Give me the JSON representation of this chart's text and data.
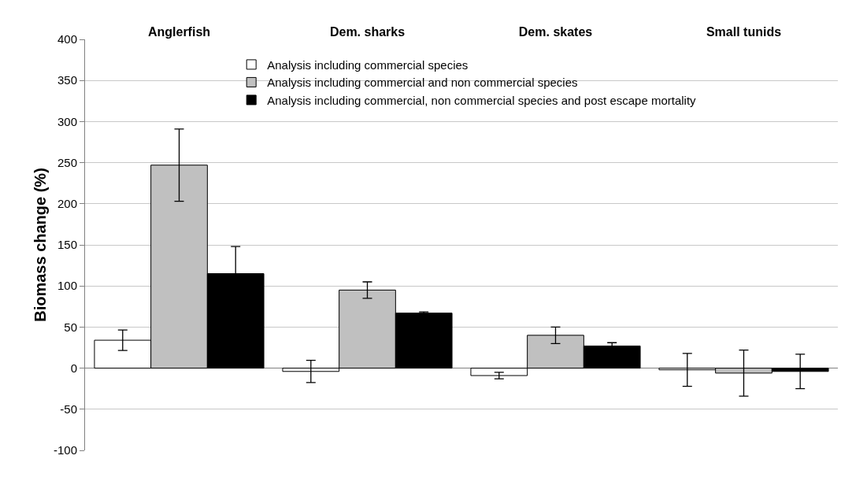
{
  "chart_data": {
    "type": "bar",
    "ylabel": "Biomass change (%)",
    "categories": [
      "Anglerfish",
      "Dem. sharks",
      "Dem. skates",
      "Small tunids"
    ],
    "series": [
      {
        "name": "Analysis including commercial species",
        "color": "#ffffff",
        "values": [
          34,
          -4,
          -9,
          -2
        ],
        "errors": [
          12.5,
          13.5,
          4,
          20
        ]
      },
      {
        "name": "Analysis including commercial and non commercial species",
        "color": "#c0c0c0",
        "values": [
          247,
          95,
          40,
          -6
        ],
        "errors": [
          44,
          10,
          10,
          28
        ]
      },
      {
        "name": "Analysis including commercial, non commercial species and post escape mortality",
        "color": "#000000",
        "values": [
          115,
          67,
          27,
          -4
        ],
        "errors": [
          33,
          1.5,
          4,
          21
        ]
      }
    ],
    "ylim": [
      -100,
      400
    ],
    "yticks": [
      -100,
      -50,
      0,
      50,
      100,
      150,
      200,
      250,
      300,
      350,
      400
    ],
    "grid": "y",
    "legend": "top left"
  }
}
